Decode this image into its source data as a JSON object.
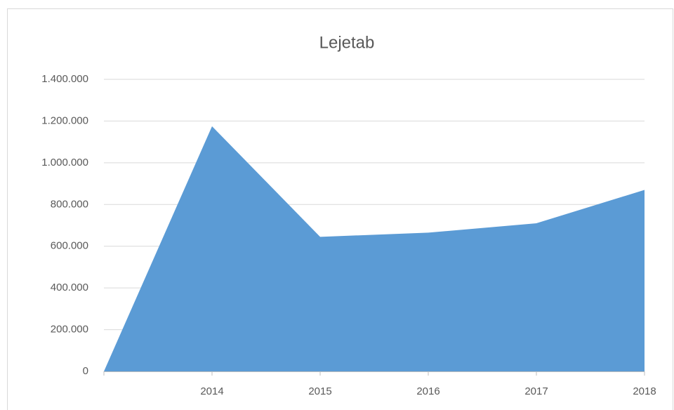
{
  "chart_data": {
    "type": "area",
    "title": "Lejetab",
    "categories": [
      null,
      "2014",
      "2015",
      "2016",
      "2017",
      "2018"
    ],
    "series": [
      {
        "name": "Lejetab",
        "color": "#5b9bd5",
        "values": [
          0,
          1175000,
          645000,
          665000,
          710000,
          870000
        ]
      }
    ],
    "ylim": [
      0,
      1400000
    ],
    "yticks": [
      0,
      {
        "value": 200000,
        "label": "200.000"
      },
      {
        "value": 400000,
        "label": "400.000"
      },
      {
        "value": 600000,
        "label": "600.000"
      },
      {
        "value": 800000,
        "label": "800.000"
      },
      {
        "value": 1000000,
        "label": "1.000.000"
      },
      {
        "value": 1200000,
        "label": "1.200.000"
      },
      {
        "value": 1400000,
        "label": "1.400.000"
      }
    ],
    "grid": true,
    "legend": false
  }
}
